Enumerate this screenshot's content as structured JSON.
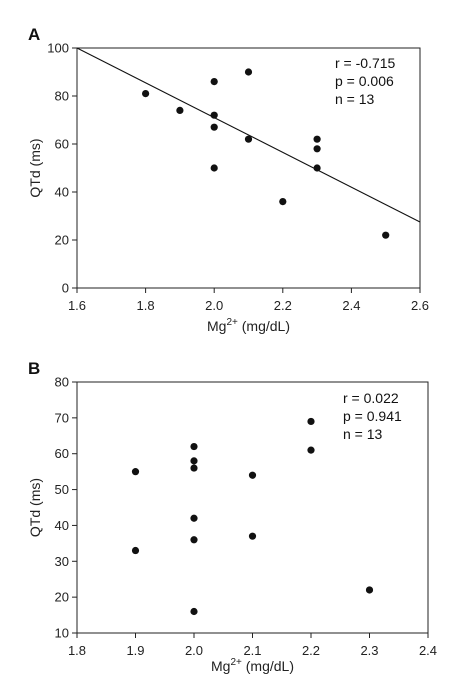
{
  "chart_data": [
    {
      "type": "scatter",
      "panel_label": "A",
      "xlabel_main": "Mg",
      "xlabel_sup": "2+",
      "xlabel_unit": " (mg/dL)",
      "ylabel": "QTd (ms)",
      "xlim": [
        1.6,
        2.6
      ],
      "ylim": [
        0,
        100
      ],
      "xticks": [
        1.6,
        1.8,
        2.0,
        2.2,
        2.4,
        2.6
      ],
      "xtick_labels": [
        "1.6",
        "1.8",
        "2.0",
        "2.2",
        "2.4",
        "2.6"
      ],
      "yticks": [
        0,
        20,
        40,
        60,
        80,
        100
      ],
      "ytick_labels": [
        "0",
        "20",
        "40",
        "60",
        "80",
        "100"
      ],
      "points": [
        {
          "x": 1.8,
          "y": 81
        },
        {
          "x": 1.9,
          "y": 74
        },
        {
          "x": 2.0,
          "y": 86
        },
        {
          "x": 2.0,
          "y": 72
        },
        {
          "x": 2.0,
          "y": 67
        },
        {
          "x": 2.0,
          "y": 50
        },
        {
          "x": 2.1,
          "y": 90
        },
        {
          "x": 2.1,
          "y": 62
        },
        {
          "x": 2.2,
          "y": 36
        },
        {
          "x": 2.3,
          "y": 62
        },
        {
          "x": 2.3,
          "y": 58
        },
        {
          "x": 2.3,
          "y": 50
        },
        {
          "x": 2.5,
          "y": 22
        }
      ],
      "regression_line": {
        "x": [
          1.6,
          2.6
        ],
        "y": [
          100,
          27.5
        ]
      },
      "stats": [
        "r = -0.715",
        "p = 0.006",
        "n = 13"
      ],
      "grid": false
    },
    {
      "type": "scatter",
      "panel_label": "B",
      "xlabel_main": "Mg",
      "xlabel_sup": "2+",
      "xlabel_unit": " (mg/dL)",
      "ylabel": "QTd (ms)",
      "xlim": [
        1.8,
        2.4
      ],
      "ylim": [
        10,
        80
      ],
      "xticks": [
        1.8,
        1.9,
        2.0,
        2.1,
        2.2,
        2.3,
        2.4
      ],
      "xtick_labels": [
        "1.8",
        "1.9",
        "2.0",
        "2.1",
        "2.2",
        "2.3",
        "2.4"
      ],
      "yticks": [
        10,
        20,
        30,
        40,
        50,
        60,
        70,
        80
      ],
      "ytick_labels": [
        "10",
        "20",
        "30",
        "40",
        "50",
        "60",
        "70",
        "80"
      ],
      "points": [
        {
          "x": 1.9,
          "y": 55
        },
        {
          "x": 1.9,
          "y": 33
        },
        {
          "x": 2.0,
          "y": 62
        },
        {
          "x": 2.0,
          "y": 58
        },
        {
          "x": 2.0,
          "y": 56
        },
        {
          "x": 2.0,
          "y": 42
        },
        {
          "x": 2.0,
          "y": 36
        },
        {
          "x": 2.0,
          "y": 16
        },
        {
          "x": 2.1,
          "y": 54
        },
        {
          "x": 2.1,
          "y": 37
        },
        {
          "x": 2.2,
          "y": 69
        },
        {
          "x": 2.2,
          "y": 61
        },
        {
          "x": 2.3,
          "y": 22
        }
      ],
      "stats": [
        "r = 0.022",
        "p = 0.941",
        "n = 13"
      ],
      "grid": false
    }
  ],
  "colors": {
    "axis": "#222222",
    "point": "#111111",
    "line": "#111111"
  }
}
